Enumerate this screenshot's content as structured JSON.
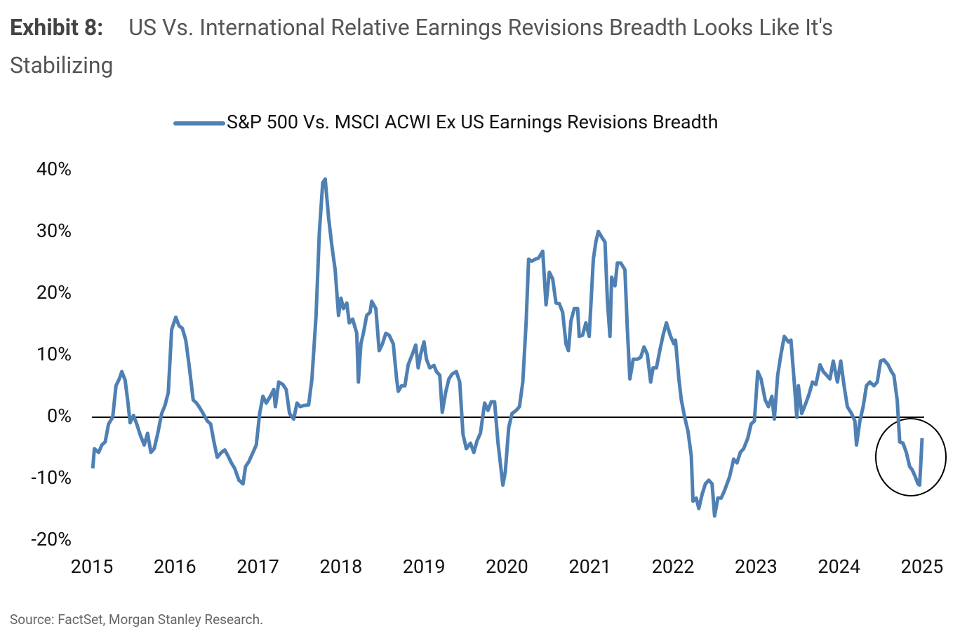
{
  "chart_data": {
    "type": "line",
    "exhibit": "Exhibit 8:",
    "title": "US Vs. International Relative Earnings Revisions Breadth Looks Like It's Stabilizing",
    "source": "Source: FactSet, Morgan Stanley Research.",
    "xlim": [
      2015,
      2025
    ],
    "xticks": [
      2015,
      2016,
      2017,
      2018,
      2019,
      2020,
      2021,
      2022,
      2023,
      2024,
      2025
    ],
    "ylim": [
      -20,
      40
    ],
    "yticks": [
      {
        "value": -20,
        "label": "-20%"
      },
      {
        "value": -10,
        "label": "-10%"
      },
      {
        "value": 0,
        "label": "0%"
      },
      {
        "value": 10,
        "label": "10%"
      },
      {
        "value": 20,
        "label": "20%"
      },
      {
        "value": 30,
        "label": "30%"
      },
      {
        "value": 40,
        "label": "40%"
      }
    ],
    "grid": false,
    "legend": "top",
    "x": [
      2015.01,
      2015.03,
      2015.08,
      2015.12,
      2015.16,
      2015.2,
      2015.25,
      2015.29,
      2015.33,
      2015.36,
      2015.4,
      2015.43,
      2015.46,
      2015.5,
      2015.54,
      2015.58,
      2015.63,
      2015.67,
      2015.71,
      2015.75,
      2015.79,
      2015.84,
      2015.88,
      2015.92,
      2015.96,
      2016.01,
      2016.05,
      2016.09,
      2016.13,
      2016.17,
      2016.22,
      2016.26,
      2016.3,
      2016.34,
      2016.39,
      2016.43,
      2016.47,
      2016.51,
      2016.56,
      2016.6,
      2016.64,
      2016.68,
      2016.72,
      2016.77,
      2016.82,
      2016.85,
      2016.89,
      2016.94,
      2016.98,
      2017.02,
      2017.06,
      2017.1,
      2017.15,
      2017.19,
      2017.21,
      2017.25,
      2017.3,
      2017.34,
      2017.38,
      2017.43,
      2017.47,
      2017.51,
      2017.55,
      2017.61,
      2017.65,
      2017.7,
      2017.74,
      2017.78,
      2017.81,
      2017.85,
      2017.89,
      2017.93,
      2017.97,
      2018.0,
      2018.03,
      2018.07,
      2018.1,
      2018.14,
      2018.19,
      2018.21,
      2018.24,
      2018.27,
      2018.31,
      2018.35,
      2018.37,
      2018.42,
      2018.46,
      2018.5,
      2018.54,
      2018.58,
      2018.63,
      2018.67,
      2018.69,
      2018.73,
      2018.77,
      2018.81,
      2018.86,
      2018.9,
      2018.93,
      2018.96,
      2019.0,
      2019.03,
      2019.07,
      2019.12,
      2019.15,
      2019.19,
      2019.22,
      2019.26,
      2019.3,
      2019.34,
      2019.39,
      2019.43,
      2019.47,
      2019.51,
      2019.56,
      2019.6,
      2019.64,
      2019.68,
      2019.73,
      2019.77,
      2019.81,
      2019.85,
      2019.89,
      2019.95,
      2019.98,
      2020.02,
      2020.06,
      2020.11,
      2020.15,
      2020.19,
      2020.23,
      2020.26,
      2020.3,
      2020.34,
      2020.38,
      2020.43,
      2020.47,
      2020.51,
      2020.55,
      2020.59,
      2020.63,
      2020.67,
      2020.71,
      2020.74,
      2020.77,
      2020.81,
      2020.85,
      2020.87,
      2020.91,
      2020.95,
      2020.99,
      2021.04,
      2021.07,
      2021.1,
      2021.15,
      2021.18,
      2021.21,
      2021.24,
      2021.26,
      2021.3,
      2021.33,
      2021.37,
      2021.42,
      2021.45,
      2021.48,
      2021.52,
      2021.57,
      2021.61,
      2021.65,
      2021.69,
      2021.73,
      2021.76,
      2021.8,
      2021.84,
      2021.88,
      2021.92,
      2021.97,
      2022.01,
      2022.03,
      2022.07,
      2022.1,
      2022.14,
      2022.18,
      2022.22,
      2022.24,
      2022.28,
      2022.31,
      2022.35,
      2022.39,
      2022.43,
      2022.47,
      2022.5,
      2022.54,
      2022.58,
      2022.62,
      2022.68,
      2022.73,
      2022.77,
      2022.81,
      2022.85,
      2022.9,
      2022.94,
      2022.98,
      2023.02,
      2023.06,
      2023.11,
      2023.15,
      2023.19,
      2023.22,
      2023.26,
      2023.3,
      2023.34,
      2023.39,
      2023.42,
      2023.46,
      2023.49,
      2023.51,
      2023.55,
      2023.6,
      2023.64,
      2023.68,
      2023.72,
      2023.77,
      2023.81,
      2023.85,
      2023.89,
      2023.93,
      2023.98,
      2024.02,
      2024.06,
      2024.1,
      2024.15,
      2024.19,
      2024.21,
      2024.25,
      2024.29,
      2024.33,
      2024.37,
      2024.42,
      2024.46,
      2024.5,
      2024.54,
      2024.59,
      2024.63,
      2024.66,
      2024.7,
      2024.73,
      2024.77,
      2024.81,
      2024.85,
      2024.88,
      2024.92,
      2024.95,
      2024.97,
      2025.0
    ],
    "series": [
      {
        "name": "S&P 500 Vs. MSCI ACWI Ex US Earnings Revisions Breadth",
        "color": "#4f80b3",
        "values": [
          -8.3,
          -5.1,
          -5.7,
          -4.5,
          -4,
          -1.1,
          0,
          5.1,
          6.2,
          7.4,
          6,
          2.8,
          -0.9,
          0.3,
          -1.1,
          -2.8,
          -4.5,
          -2.6,
          -5.7,
          -5.1,
          -2.8,
          0.6,
          1.9,
          4,
          14.2,
          16.2,
          14.8,
          14.4,
          12.5,
          8.5,
          2.8,
          2.3,
          1.5,
          0.6,
          -0.6,
          -1.1,
          -4,
          -6.5,
          -5.7,
          -5.3,
          -6.3,
          -7.4,
          -8.3,
          -10.2,
          -10.8,
          -8,
          -7.2,
          -5.7,
          -4.5,
          0.6,
          3.4,
          2.3,
          3.4,
          4.5,
          1.7,
          5.7,
          5.3,
          4.5,
          0.6,
          -0.3,
          2.3,
          1.7,
          1.9,
          2,
          6.2,
          16.5,
          30,
          38,
          38.6,
          32.4,
          27.8,
          23.9,
          16.5,
          19.3,
          17.6,
          18.5,
          15.3,
          15.9,
          13.6,
          5.7,
          11.9,
          13.6,
          16.5,
          17,
          18.8,
          17.6,
          10.8,
          11.9,
          13.6,
          13.3,
          11.9,
          6.2,
          4.2,
          5.1,
          5.1,
          8.5,
          10.2,
          11.7,
          8,
          10.2,
          12.2,
          9.4,
          8,
          8.4,
          7.4,
          6.8,
          0.8,
          4,
          6.2,
          7,
          7.4,
          5.7,
          -2.8,
          -5.1,
          -4.2,
          -5.7,
          -3.8,
          -2.6,
          2.3,
          1.1,
          2.5,
          2.5,
          -4,
          -11,
          -8.8,
          -1.7,
          0.6,
          1.1,
          1.7,
          5.7,
          15.3,
          25.6,
          25.3,
          25.6,
          25.8,
          26.9,
          18.2,
          23.5,
          22.4,
          18.5,
          18.4,
          17,
          11.9,
          10.8,
          15.6,
          17.6,
          17.6,
          13.1,
          13.3,
          15.3,
          13.1,
          25.6,
          28.4,
          30.1,
          29,
          28.4,
          18.8,
          13.1,
          22.7,
          21.3,
          25,
          25,
          23.9,
          14.2,
          6.2,
          9.4,
          9.4,
          9.7,
          11.4,
          10.2,
          5.7,
          8,
          8,
          10.8,
          13.3,
          15.3,
          13.1,
          11.9,
          12.5,
          6.2,
          2.8,
          0,
          -2.3,
          -6.3,
          -13.6,
          -13.1,
          -14.8,
          -12.5,
          -10.8,
          -10.2,
          -10.8,
          -16,
          -13.1,
          -13.1,
          -11.9,
          -9.7,
          -6.8,
          -7.4,
          -5.7,
          -5.1,
          -3.4,
          -1.1,
          -0.6,
          7.4,
          6.2,
          2.8,
          1.7,
          3.4,
          -0.3,
          6.8,
          10.2,
          13.1,
          12.2,
          12.5,
          5.7,
          0,
          5.1,
          0.6,
          2.3,
          3.8,
          5.7,
          5.3,
          8.5,
          7.4,
          6.8,
          6.2,
          9.1,
          5.7,
          9.1,
          5.1,
          1.7,
          0.6,
          -0.6,
          -4.5,
          -0.6,
          1.7,
          5.1,
          5.7,
          5.1,
          5.7,
          9.1,
          9.3,
          8.5,
          7.4,
          6.8,
          2.8,
          -4,
          -4.2,
          -5.7,
          -8,
          -8.5,
          -9.7,
          -10.8,
          -11,
          -3.4
        ]
      }
    ]
  }
}
